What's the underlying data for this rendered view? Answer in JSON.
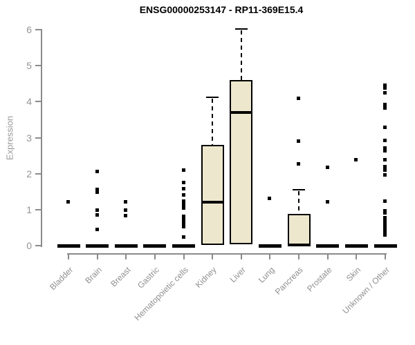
{
  "colors": {
    "box_fill": "#EDE7CD",
    "box_border": "#000000",
    "median": "#000000",
    "axis": "#8A8A8A",
    "tick_label": "#949494",
    "title": "#000000",
    "background": "#FFFFFF"
  },
  "chart_data": {
    "type": "boxplot",
    "title": "ENSG00000253147 - RP11-369E15.4",
    "ylabel": "Expression",
    "xlabel": "",
    "ylim": [
      0,
      6
    ],
    "yticks": [
      0,
      1,
      2,
      3,
      4,
      5,
      6
    ],
    "grid": false,
    "legend": "none",
    "categories": [
      "Bladder",
      "Brain",
      "Breast",
      "Gastric",
      "Hematopoietic cells",
      "Kidney",
      "Liver",
      "Lung",
      "Pancreas",
      "Prostate",
      "Skin",
      "Unknown / Other"
    ],
    "boxes": [
      {
        "category": "Bladder",
        "q1": 0,
        "median": 0,
        "q3": 0,
        "whisker_low": 0,
        "whisker_high": 0,
        "outliers": [
          1.2
        ]
      },
      {
        "category": "Brain",
        "q1": 0,
        "median": 0,
        "q3": 0,
        "whisker_low": 0,
        "whisker_high": 0,
        "outliers": [
          2.05,
          1.55,
          1.48,
          0.98,
          0.85,
          0.45
        ]
      },
      {
        "category": "Breast",
        "q1": 0,
        "median": 0,
        "q3": 0,
        "whisker_low": 0,
        "whisker_high": 0,
        "outliers": [
          1.2,
          0.98,
          0.82
        ]
      },
      {
        "category": "Gastric",
        "q1": 0,
        "median": 0,
        "q3": 0,
        "whisker_low": 0,
        "whisker_high": 0,
        "outliers": []
      },
      {
        "category": "Hematopoietic cells",
        "q1": 0,
        "median": 0,
        "q3": 0,
        "whisker_low": 0,
        "whisker_high": 0,
        "outliers": [
          2.08,
          1.75,
          1.57,
          1.4,
          1.22,
          1.13,
          1.04,
          0.8,
          0.73,
          0.66,
          0.6,
          0.52,
          0.23
        ]
      },
      {
        "category": "Kidney",
        "q1": 0.02,
        "median": 1.21,
        "q3": 2.8,
        "whisker_low": 0.02,
        "whisker_high": 4.13,
        "outliers": []
      },
      {
        "category": "Liver",
        "q1": 0.04,
        "median": 3.7,
        "q3": 4.6,
        "whisker_low": 0.04,
        "whisker_high": 6.02,
        "outliers": []
      },
      {
        "category": "Lung",
        "q1": 0,
        "median": 0,
        "q3": 0,
        "whisker_low": 0,
        "whisker_high": 0,
        "outliers": [
          1.3
        ]
      },
      {
        "category": "Pancreas",
        "q1": 0.02,
        "median": 0.02,
        "q3": 0.88,
        "whisker_low": 0.02,
        "whisker_high": 1.55,
        "outliers": [
          4.08,
          2.9,
          2.26
        ]
      },
      {
        "category": "Prostate",
        "q1": 0,
        "median": 0,
        "q3": 0,
        "whisker_low": 0,
        "whisker_high": 0,
        "outliers": [
          2.16,
          1.2
        ]
      },
      {
        "category": "Skin",
        "q1": 0,
        "median": 0,
        "q3": 0,
        "whisker_low": 0,
        "whisker_high": 0,
        "outliers": [
          2.38
        ]
      },
      {
        "category": "Unknown / Other",
        "q1": 0,
        "median": 0,
        "q3": 0,
        "whisker_low": 0,
        "whisker_high": 0,
        "outliers": [
          4.45,
          4.38,
          4.24,
          3.92,
          3.82,
          3.28,
          2.92,
          2.7,
          2.62,
          2.37,
          2.18,
          2.08,
          1.95,
          1.22,
          0.95,
          0.9,
          0.76,
          0.67,
          0.57,
          0.5,
          0.43,
          0.36,
          0.29
        ]
      }
    ]
  }
}
